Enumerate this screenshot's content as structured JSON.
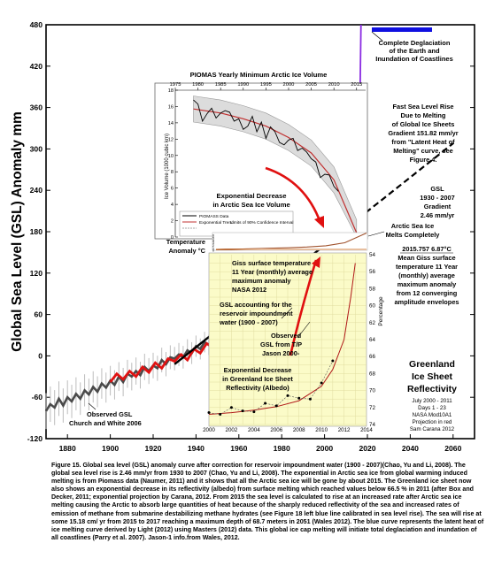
{
  "main": {
    "ylabel": "Global Sea Level (GSL) Anomaly mm",
    "x_ticks": [
      "1880",
      "1900",
      "1920",
      "1940",
      "1960",
      "1980",
      "2000",
      "2020",
      "2040",
      "2060"
    ],
    "y_ticks": [
      "-120",
      "-60",
      "0",
      "60",
      "120",
      "180",
      "240",
      "300",
      "360",
      "420",
      "480"
    ],
    "xlim": [
      1870,
      2070
    ],
    "ylim": [
      -120,
      480
    ]
  },
  "annotations": {
    "deglaciation": [
      "Complete Deglaciation",
      "of the Earth and",
      "Inundation of Coastlines"
    ],
    "fast_rise": [
      "Fast Sea Level Rise",
      "Due to Melting",
      "of Global Ice Sheets",
      "Gradient 151.82 mm/yr",
      "from \"Latent Heat of",
      "Melting\" curve, see",
      "Figure 4."
    ],
    "gsl_gradient": [
      "GSL",
      "1930 - 2007",
      "Gradient",
      "2.46 mm/yr"
    ],
    "arctic_melts": [
      "Arctic Sea Ice",
      "Melts Completely"
    ],
    "mean_giss": [
      "2015.757  6.87°C",
      "Mean Giss surface",
      "temperature 11 Year",
      "(monthly) average",
      "maximum anomaly",
      "from 12 converging",
      "amplitude envelopes"
    ],
    "giss_label": [
      "Giss surface temperature",
      "11 Year (monthly) average",
      "maximum anomaly",
      "NASA 2012"
    ],
    "reservoir": [
      "GSL accounting for the",
      "reservoir impoundment",
      "water (1900 - 2007)"
    ],
    "observed_tp": [
      "Observed",
      "GSL from T/P",
      "Jason 2000-"
    ],
    "observed_cw": [
      "Observed GSL",
      "Church and White 2006"
    ],
    "greenland_exp": [
      "Exponential Decrease",
      "in Greenland Ice Sheet",
      "Reflectivity (Albedo)"
    ],
    "temp_anomaly": [
      "Temperature",
      "Anomaly °C"
    ]
  },
  "piomas": {
    "title": "PIOMAS  Yearly Minimum Arctic Ice Volume",
    "ylabel": "Ice Volume (1000 cubic km)",
    "x_ticks": [
      "1975",
      "1980",
      "1985",
      "1990",
      "1995",
      "2000",
      "2005",
      "2010",
      "2015"
    ],
    "y_ticks": [
      "0",
      "2",
      "4",
      "6",
      "8",
      "10",
      "12",
      "14",
      "16",
      "18"
    ],
    "exp_label": [
      "Exponential Decrease",
      "in Arctic Sea Ice Volume"
    ],
    "legend": [
      "PIOMASS Data",
      "Exponential Trend",
      "Limits of 90% Confidence Interval"
    ]
  },
  "giss_inset": {
    "y_ticks": [
      "0",
      "1",
      "2",
      "3",
      "4",
      "5",
      "6"
    ]
  },
  "greenland": {
    "title": [
      "Greenland",
      "Ice Sheet",
      "Reflectivity"
    ],
    "info": [
      "July 2000 - 2011",
      "Days 1 - 23",
      "NASA Mod10A1",
      "Projection in red",
      "Sam Carana 2012"
    ],
    "ylabel": "Percentage",
    "y_ticks": [
      "54",
      "56",
      "58",
      "60",
      "62",
      "64",
      "66",
      "68",
      "70",
      "72",
      "74"
    ],
    "x_ticks": [
      "2000",
      "2002",
      "2004",
      "2006",
      "2008",
      "2010",
      "2012",
      "2014"
    ]
  },
  "caption": "Figure 15. Global sea level (GSL) anomaly curve after correction for reservoir impoundment water (1900 - 2007)(Chao, Yu and Li, 2008). The global sea level rise is 2.46 mm/yr from 1930 to 2007 (Chao, Yu and Li, 2008). The exponential in Arctic sea ice from global warming induced melting is from Piomass data (Naumer, 2011) and it shows that all the Arctic sea ice will be gone by about 2015. The Greenland ice sheet now also shows an exponential decrease in its reflectivity (albedo) from surface melting which reached values below 66.5 % in 2011 (after Box and Decker, 2011; exponential projection by Carana, 2012. From 2015 the sea level is calculated to rise at an increased rate after Arctic sea ice melting causing the Arctic to absorb large quantities of heat because of the sharply reduced reflectivity of the sea and increased rates of emission of methane from submarine destabilizing methane hydrates (see Figure 18 left blue line calibrated in sea level rise). The sea will rise at some 15.18 cm/ yr from 2015 to 2017 reaching a maximum depth of 68.7 meters in 2051 (Wales 2012). The blue curve represents the latent heat of ice melting curve derived by Light (2012) using Masters (2012) data. This global ice cap melting will initiate total deglaciation and inundation of all coastlines (Parry et al. 2007). Jason-1 info.from Wales, 2012.",
  "chart_data": [
    {
      "type": "line",
      "title": "",
      "xlabel": "",
      "ylabel": "Global Sea Level (GSL) Anomaly mm",
      "xlim": [
        1870,
        2070
      ],
      "ylim": [
        -120,
        480
      ],
      "grid": false,
      "series": [
        {
          "name": "Observed GSL Church and White 2006",
          "x": [
            1870,
            1872,
            1874,
            1876,
            1878,
            1880,
            1882,
            1884,
            1886,
            1888,
            1890,
            1892,
            1894,
            1896,
            1898,
            1900,
            1902,
            1904,
            1906,
            1908,
            1910,
            1912,
            1914,
            1916,
            1918,
            1920,
            1922,
            1924,
            1926,
            1928,
            1930,
            1932,
            1934,
            1936,
            1938,
            1940,
            1942,
            1944,
            1946,
            1948,
            1950,
            1952,
            1954,
            1956,
            1958,
            1960,
            1962,
            1964,
            1966,
            1968,
            1970,
            1972,
            1974,
            1976,
            1978,
            1980,
            1982,
            1984,
            1986,
            1988,
            1990,
            1992,
            1994,
            1996,
            1998,
            2000,
            2002,
            2004,
            2006
          ],
          "y": [
            -80,
            -70,
            -75,
            -62,
            -72,
            -60,
            -66,
            -55,
            -62,
            -50,
            -56,
            -45,
            -52,
            -40,
            -46,
            -36,
            -42,
            -30,
            -38,
            -26,
            -30,
            -22,
            -28,
            -16,
            -22,
            -14,
            -18,
            -6,
            -12,
            -2,
            -4,
            2,
            -2,
            8,
            4,
            14,
            10,
            20,
            16,
            26,
            22,
            32,
            26,
            38,
            32,
            44,
            38,
            50,
            46,
            58,
            52,
            60,
            56,
            66,
            62,
            72,
            68,
            78,
            74,
            82,
            80,
            88,
            86,
            94,
            92,
            100,
            104,
            110,
            116
          ]
        },
        {
          "name": "GSL accounting for the reservoir impoundment water (1900 - 2007)",
          "x": [
            1900,
            1903,
            1906,
            1909,
            1912,
            1915,
            1918,
            1921,
            1924,
            1927,
            1930,
            1933,
            1936,
            1939,
            1942,
            1945,
            1948,
            1951,
            1954,
            1957,
            1960,
            1963,
            1966,
            1969,
            1972,
            1975,
            1978,
            1981,
            1984,
            1987,
            1990,
            1993,
            1996,
            1999,
            2002,
            2005,
            2007
          ],
          "y": [
            -38,
            -26,
            -34,
            -22,
            -30,
            -16,
            -24,
            -10,
            -18,
            -4,
            -8,
            2,
            -6,
            10,
            4,
            18,
            12,
            28,
            22,
            38,
            32,
            48,
            44,
            60,
            56,
            70,
            68,
            84,
            80,
            96,
            94,
            110,
            116,
            124,
            132,
            140,
            146
          ]
        },
        {
          "name": "GSL 1930 - 2007 Gradient 2.46 mm/yr",
          "x": [
            1930,
            2060
          ],
          "y": [
            -12,
            308
          ]
        },
        {
          "name": "Fast Sea Level Rise Due to Melting of Global Ice Sheets Gradient 151.82 mm/yr",
          "x": [
            2015.7,
            2017
          ],
          "y": [
            173,
            480
          ]
        }
      ]
    },
    {
      "type": "line",
      "title": "PIOMAS  Yearly Minimum Arctic Ice Volume",
      "xlabel": "",
      "ylabel": "Ice Volume (1000 cubic km)",
      "xlim": [
        1975,
        2017
      ],
      "ylim": [
        0,
        18
      ],
      "series": [
        {
          "name": "PIOMASS Data",
          "x": [
            1979,
            1980,
            1981,
            1982,
            1983,
            1984,
            1985,
            1986,
            1987,
            1988,
            1989,
            1990,
            1991,
            1992,
            1993,
            1994,
            1995,
            1996,
            1997,
            1998,
            1999,
            2000,
            2001,
            2002,
            2003,
            2004,
            2005,
            2006,
            2007,
            2008,
            2009,
            2010,
            2011
          ],
          "y": [
            16.8,
            16.3,
            14.2,
            15.1,
            15.8,
            14.6,
            15.2,
            15.5,
            15.3,
            14.2,
            14.5,
            13.2,
            13.6,
            14.8,
            12.9,
            14.1,
            12.1,
            13.5,
            12.9,
            11.6,
            11.3,
            11.9,
            12.1,
            10.6,
            10.9,
            10.4,
            9.6,
            9.2,
            7.3,
            7.7,
            7.6,
            6.2,
            5.6
          ]
        },
        {
          "name": "Exponential Trend",
          "x": [
            1979,
            1985,
            1990,
            1995,
            2000,
            2005,
            2010,
            2015
          ],
          "y": [
            15.7,
            15.2,
            14.5,
            13.6,
            12.2,
            10.3,
            7.0,
            0.5
          ]
        }
      ]
    },
    {
      "type": "line",
      "title": "",
      "xlabel": "",
      "ylabel": "Temperature Anomaly °C",
      "ylim": [
        0,
        6
      ],
      "series": [
        {
          "name": "Giss surface temperature 11 Year (monthly) average maximum anomaly NASA 2012",
          "x": [
            1976,
            1980,
            1985,
            1990,
            1995,
            2000,
            2005,
            2010,
            2015.757
          ],
          "y": [
            0.2,
            0.4,
            0.6,
            0.8,
            1.0,
            1.3,
            1.8,
            3.0,
            6.87
          ]
        }
      ]
    },
    {
      "type": "line",
      "title": "Greenland Ice Sheet Reflectivity",
      "xlabel": "",
      "ylabel": "Percentage",
      "xlim": [
        2000,
        2014
      ],
      "ylim": [
        54,
        74
      ],
      "series": [
        {
          "name": "July 2000 - 2011",
          "x": [
            2000,
            2001,
            2002,
            2003,
            2004,
            2005,
            2006,
            2007,
            2008,
            2009,
            2010,
            2011
          ],
          "y": [
            72.6,
            72.8,
            72.0,
            72.4,
            72.5,
            71.5,
            71.8,
            70.6,
            70.9,
            71.0,
            69.1,
            66.5
          ]
        },
        {
          "name": "Projection in red",
          "x": [
            2000,
            2002,
            2004,
            2006,
            2008,
            2010,
            2011,
            2012,
            2012.6,
            2013
          ],
          "y": [
            72.8,
            72.6,
            72.3,
            71.9,
            71.2,
            69.5,
            67.5,
            64,
            59,
            55
          ]
        }
      ]
    }
  ]
}
